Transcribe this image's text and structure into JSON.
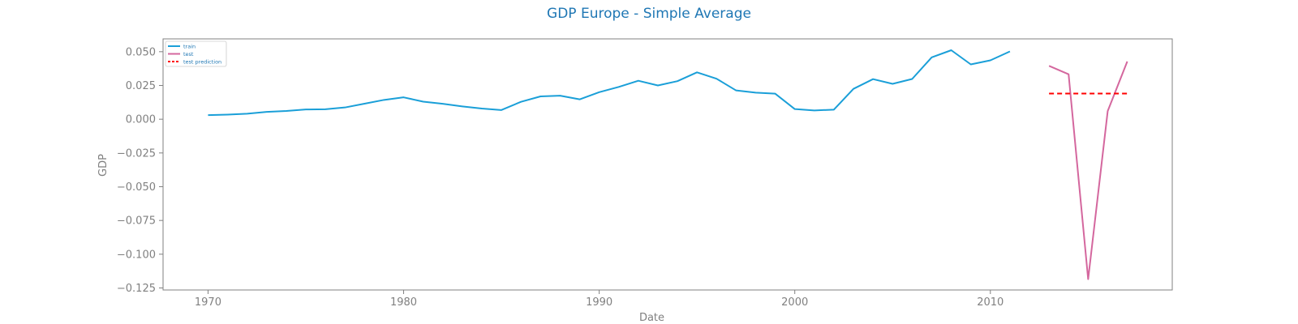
{
  "chart_data": {
    "type": "line",
    "title": "GDP Europe - Simple Average",
    "xlabel": "Date",
    "ylabel": "GDP",
    "xlim": [
      1967.7,
      2019.3
    ],
    "ylim": [
      -0.1265,
      0.0595
    ],
    "x_ticks": [
      1970,
      1980,
      1990,
      2000,
      2010
    ],
    "x_tick_labels": [
      "1970",
      "1980",
      "1990",
      "2000",
      "2010"
    ],
    "y_ticks": [
      0.05,
      0.025,
      0.0,
      -0.025,
      -0.05,
      -0.075,
      -0.1,
      -0.125
    ],
    "y_tick_labels": [
      "0.050",
      "0.025",
      "0.000",
      "−0.025",
      "−0.050",
      "−0.075",
      "−0.100",
      "−0.125"
    ],
    "grid": false,
    "legend_position": "top-left",
    "series": [
      {
        "name": "train",
        "color": "#1a9fd8",
        "style": "solid",
        "x": [
          1970,
          1971,
          1972,
          1973,
          1974,
          1975,
          1976,
          1977,
          1978,
          1979,
          1980,
          1981,
          1982,
          1983,
          1984,
          1985,
          1986,
          1987,
          1988,
          1989,
          1990,
          1991,
          1992,
          1993,
          1994,
          1995,
          1996,
          1997,
          1998,
          1999,
          2000,
          2001,
          2002,
          2003,
          2004,
          2005,
          2006,
          2007,
          2008,
          2009,
          2010,
          2011
        ],
        "y": [
          0.003,
          0.0034,
          0.0041,
          0.0054,
          0.0061,
          0.0072,
          0.0074,
          0.0087,
          0.0115,
          0.0143,
          0.0162,
          0.013,
          0.0114,
          0.0095,
          0.0079,
          0.0068,
          0.0129,
          0.0169,
          0.0174,
          0.0147,
          0.02,
          0.0239,
          0.0285,
          0.025,
          0.0282,
          0.0347,
          0.03,
          0.0213,
          0.0197,
          0.0189,
          0.0075,
          0.0065,
          0.0071,
          0.0225,
          0.0297,
          0.0262,
          0.0298,
          0.0458,
          0.0511,
          0.0406,
          0.0436,
          0.0502
        ]
      },
      {
        "name": "test",
        "color": "#d4679e",
        "style": "solid",
        "x": [
          2013,
          2014,
          2015,
          2016,
          2017
        ],
        "y": [
          0.0395,
          0.0333,
          -0.1185,
          0.006,
          0.0428
        ]
      },
      {
        "name": "test prediction",
        "color": "#ff0000",
        "style": "dashed",
        "x": [
          2013,
          2014,
          2015,
          2016,
          2017
        ],
        "y": [
          0.019,
          0.019,
          0.019,
          0.019,
          0.019
        ]
      }
    ]
  }
}
